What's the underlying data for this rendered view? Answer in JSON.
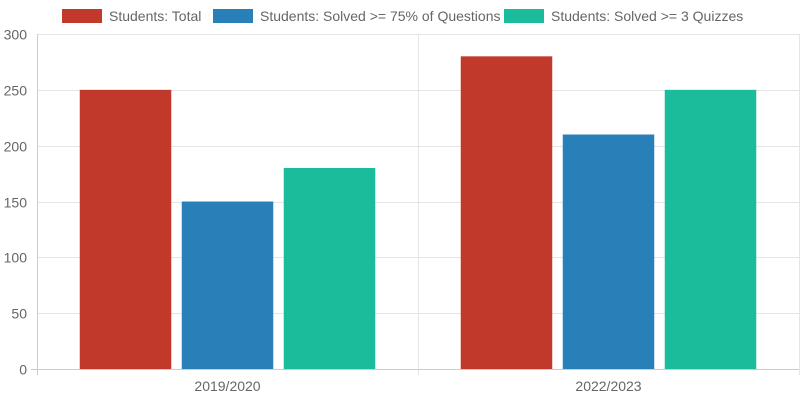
{
  "chart_data": {
    "type": "bar",
    "categories": [
      "2019/2020",
      "2022/2023"
    ],
    "series": [
      {
        "name": "Students: Total",
        "color": "#c0392b",
        "values": [
          250,
          280
        ]
      },
      {
        "name": "Students: Solved >= 75% of Questions",
        "color": "#2980b9",
        "values": [
          150,
          210
        ]
      },
      {
        "name": "Students: Solved >= 3 Quizzes",
        "color": "#1abc9c",
        "values": [
          180,
          250
        ]
      }
    ],
    "ylim": [
      0,
      300
    ],
    "yticks": [
      0,
      50,
      100,
      150,
      200,
      250,
      300
    ],
    "grid": true,
    "legend_position": "top"
  }
}
